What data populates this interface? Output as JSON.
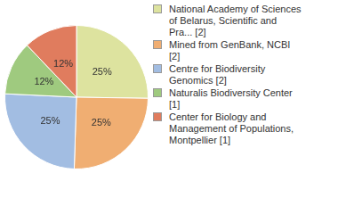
{
  "chart_data": {
    "type": "pie",
    "categories": [
      "National Academy of Sciences of Belarus, Scientific and Pra... [2]",
      "Mined from GenBank, NCBI [2]",
      "Centre for Biodiversity Genomics [2]",
      "Naturalis Biodiversity Center [1]",
      "Center for Biology and Management of Populations, Montpellier [1]"
    ],
    "values": [
      25,
      25,
      25,
      12,
      12
    ],
    "value_labels": [
      "25%",
      "25%",
      "25%",
      "12%",
      "12%"
    ],
    "colors": [
      "#dde39f",
      "#f0ae72",
      "#a2bde2",
      "#9fca7f",
      "#e07c5e"
    ],
    "legend": "right",
    "data_labels": true
  }
}
